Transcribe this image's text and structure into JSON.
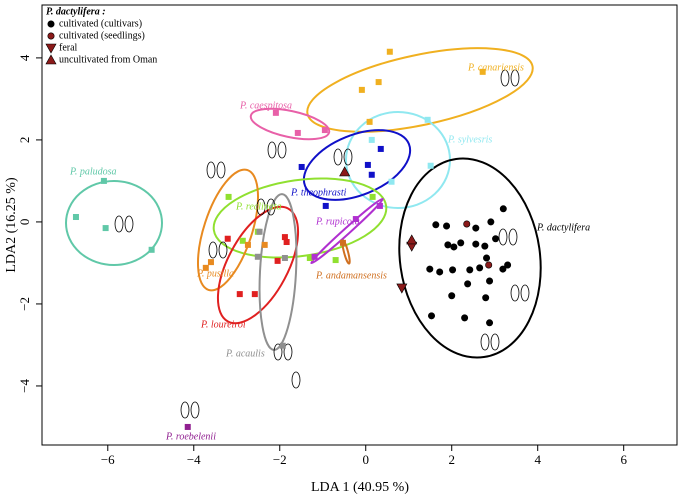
{
  "chart_data": {
    "type": "scatter",
    "xlabel": "LDA 1 (40.95 %)",
    "ylabel": "LDA2 (16.25 %)",
    "xlim": [
      -7.53,
      7.24
    ],
    "ylim": [
      -5.44,
      5.29
    ],
    "xticks": [
      {
        "value": -6,
        "label": "−6"
      },
      {
        "value": -4,
        "label": "−4"
      },
      {
        "value": -2,
        "label": "−2"
      },
      0,
      2,
      4,
      6
    ],
    "yticks": [
      {
        "value": -4,
        "label": "−4"
      },
      {
        "value": -2,
        "label": "−2"
      },
      0,
      2,
      4
    ],
    "legend_title": "P. dactylifera :",
    "legend": "upper left",
    "annotations": [
      "P. dactylifera"
    ],
    "series": [
      {
        "name": "P. canariensis",
        "color": "#f0b020",
        "marker": "square",
        "x": [
          0.56,
          0.3,
          -0.09,
          0.09,
          2.72
        ],
        "y": [
          4.15,
          3.41,
          3.22,
          2.44,
          3.66
        ]
      },
      {
        "name": "P. caespitosa",
        "color": "#e860a8",
        "marker": "square",
        "x": [
          -2.09,
          -1.58,
          -0.95
        ],
        "y": [
          2.66,
          2.17,
          2.24
        ]
      },
      {
        "name": "P. sylvesris",
        "color": "#90e8f0",
        "marker": "square",
        "x": [
          1.44,
          1.51,
          0.14,
          0.6
        ],
        "y": [
          2.49,
          1.37,
          2.0,
          0.98
        ]
      },
      {
        "name": "P. theophrasti",
        "color": "#1010c8",
        "marker": "square",
        "x": [
          -1.49,
          0.05,
          0.35,
          0.14,
          -0.93
        ],
        "y": [
          1.34,
          1.39,
          1.78,
          1.15,
          0.39
        ]
      },
      {
        "name": "P. paludosa",
        "color": "#60c8a8",
        "marker": "square",
        "x": [
          -6.74,
          -6.05,
          -6.09,
          -4.98
        ],
        "y": [
          0.12,
          -0.15,
          1.0,
          -0.68
        ]
      },
      {
        "name": "P. reclinata",
        "color": "#90e030",
        "marker": "square",
        "x": [
          -3.19,
          -2.86,
          -2.51,
          -1.3,
          -0.7,
          0.16
        ],
        "y": [
          0.61,
          -0.46,
          -0.24,
          -0.88,
          -0.93,
          0.61
        ]
      },
      {
        "name": "P. pusilla",
        "color": "#e88a20",
        "marker": "square",
        "x": [
          -3.72,
          -3.6,
          -2.74,
          -2.35
        ],
        "y": [
          -1.12,
          -0.98,
          -0.56,
          -0.56
        ]
      },
      {
        "name": "P. loureiroi",
        "color": "#e02020",
        "marker": "square",
        "x": [
          -3.21,
          -2.93,
          -2.58,
          -1.88,
          -1.84,
          -2.05
        ],
        "y": [
          -0.41,
          -1.76,
          -1.76,
          -0.37,
          -0.49,
          -0.95
        ]
      },
      {
        "name": "P. acaulis",
        "color": "#909090",
        "marker": "square",
        "x": [
          -2.47,
          -2.51,
          -1.88,
          -1.93
        ],
        "y": [
          -0.24,
          -0.85,
          -0.88,
          -3.02
        ]
      },
      {
        "name": "P. rupicola",
        "color": "#b030d0",
        "marker": "square",
        "x": [
          -1.19,
          -0.23,
          0.33
        ],
        "y": [
          -0.85,
          0.07,
          0.39
        ]
      },
      {
        "name": "P. andamansensis",
        "color": "#d07020",
        "marker": "square",
        "x": [
          -0.53
        ],
        "y": [
          -0.51
        ]
      },
      {
        "name": "P. roebelenii",
        "color": "#902090",
        "marker": "square",
        "x": [
          -4.14
        ],
        "y": [
          -5.0
        ]
      },
      {
        "name": "cultivated (cultivars)",
        "color": "#000000",
        "marker": "circle",
        "x": [
          1.63,
          1.88,
          2.05,
          2.56,
          2.91,
          3.2,
          1.91,
          2.21,
          2.56,
          2.77,
          3.02,
          1.49,
          1.72,
          2.02,
          2.42,
          2.65,
          2.81,
          2.37,
          2.88,
          3.19,
          2.0,
          2.79,
          1.53,
          2.3,
          2.88,
          3.3
        ],
        "y": [
          -0.07,
          -0.1,
          -0.61,
          -0.15,
          0.0,
          0.32,
          -0.56,
          -0.51,
          -0.54,
          -0.59,
          -0.41,
          -1.15,
          -1.22,
          -1.17,
          -1.17,
          -1.12,
          -0.88,
          -1.51,
          -1.44,
          -1.15,
          -1.8,
          -1.85,
          -2.29,
          -2.34,
          -2.46,
          -1.05
        ]
      },
      {
        "name": "cultivated (seedlings)",
        "color": "#8b1a1a",
        "marker": "circle",
        "x": [
          2.35,
          2.86
        ],
        "y": [
          -0.05,
          -1.05
        ]
      },
      {
        "name": "feral",
        "color": "#8b1a1a",
        "marker": "triangle-down",
        "x": [
          1.07,
          0.84
        ],
        "y": [
          -0.59,
          -1.61
        ]
      },
      {
        "name": "uncultivated from Oman",
        "color": "#8b1a1a",
        "marker": "triangle-up",
        "x": [
          -0.49,
          1.07
        ],
        "y": [
          1.22,
          -0.44
        ]
      }
    ]
  }
}
